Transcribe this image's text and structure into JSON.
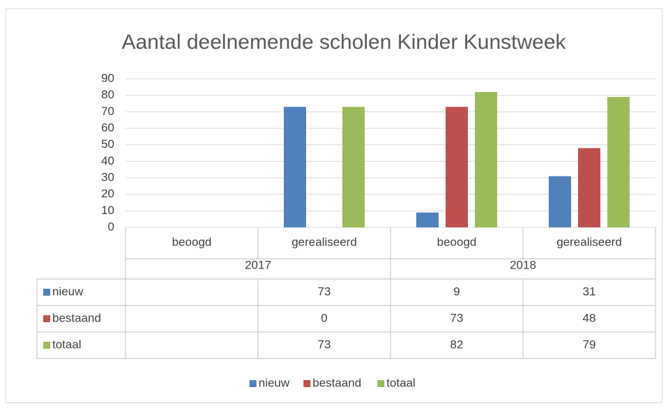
{
  "chart_data": {
    "type": "bar",
    "title": "Aantal deelnemende scholen Kinder Kunstweek",
    "groups": [
      {
        "name": "2017",
        "categories": [
          "beoogd",
          "gerealiseerd"
        ]
      },
      {
        "name": "2018",
        "categories": [
          "beoogd",
          "gerealiseerd"
        ]
      }
    ],
    "series": [
      {
        "name": "nieuw",
        "color": "#4f81bd",
        "values": [
          null,
          73,
          9,
          31
        ]
      },
      {
        "name": "bestaand",
        "color": "#c0504d",
        "values": [
          null,
          0,
          73,
          48
        ]
      },
      {
        "name": "totaal",
        "color": "#9bbb59",
        "values": [
          null,
          73,
          82,
          79
        ]
      }
    ],
    "ylim": [
      0,
      90
    ],
    "yticks": [
      0,
      10,
      20,
      30,
      40,
      50,
      60,
      70,
      80,
      90
    ],
    "grid": true,
    "legend": "bottom"
  }
}
